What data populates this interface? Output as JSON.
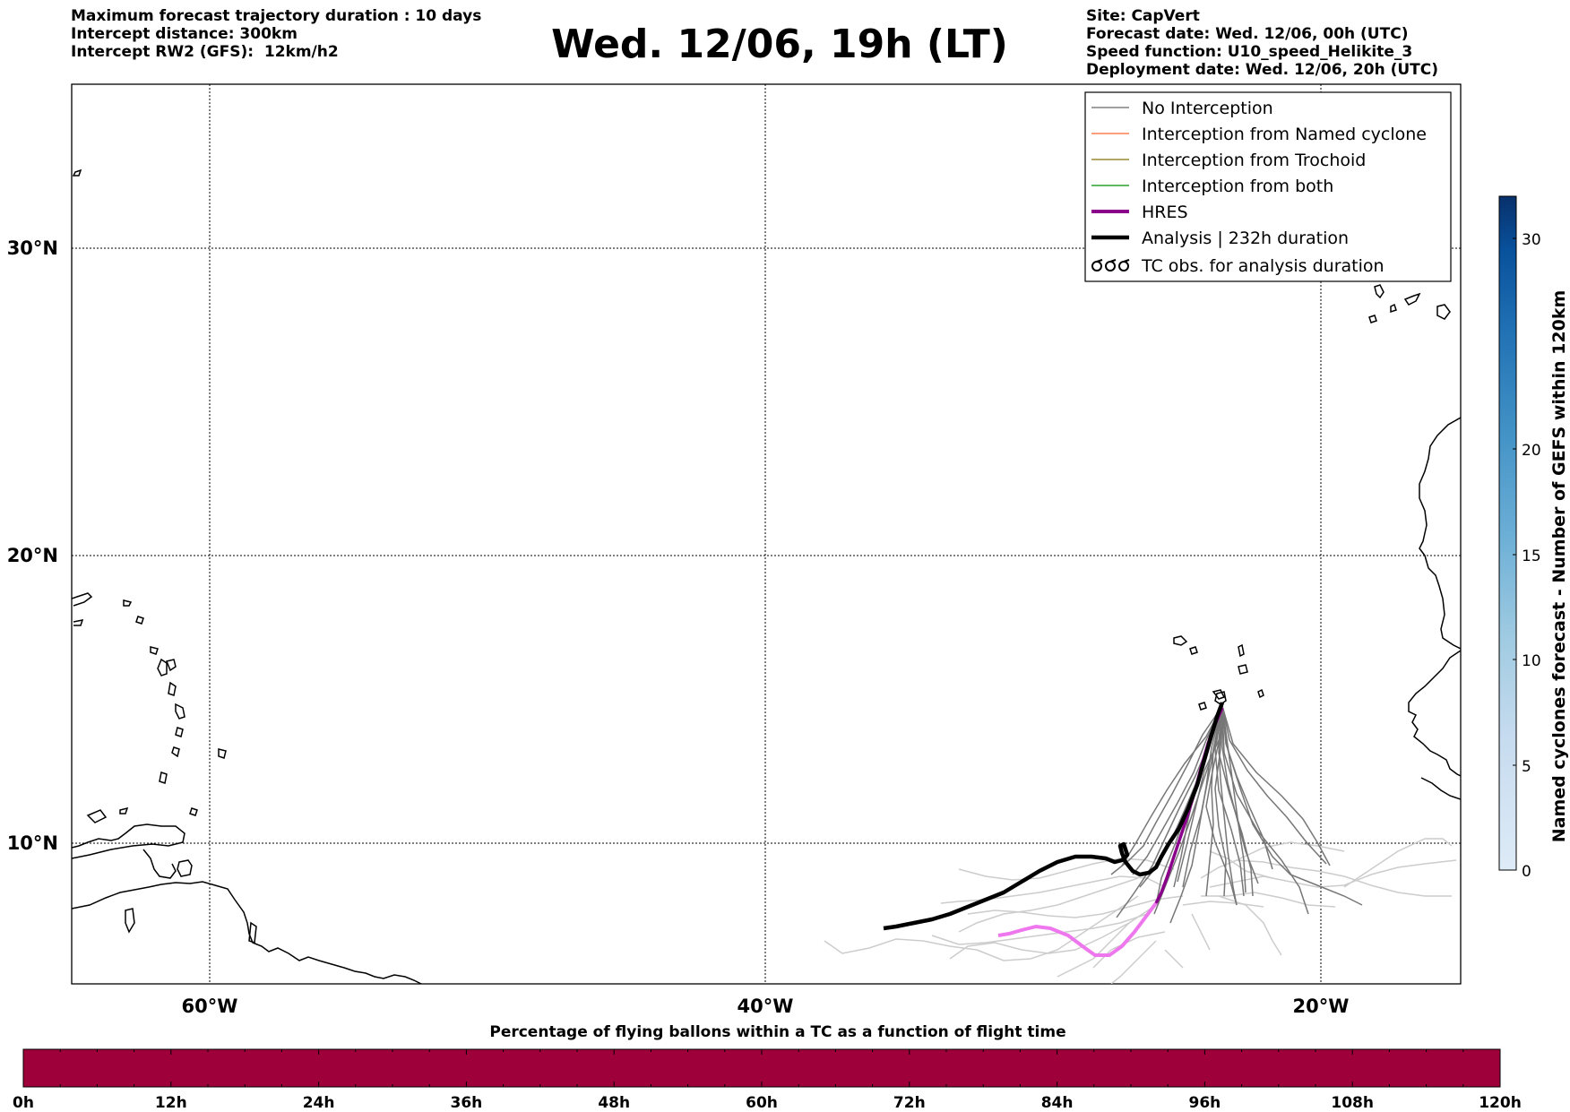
{
  "header": {
    "left_lines": [
      "Maximum forecast trajectory duration : 10 days",
      "Intercept distance: 300km",
      "Intercept RW2 (GFS):  12km/h2"
    ],
    "title": "Wed. 12/06, 19h (LT)",
    "right_lines": [
      "Site: CapVert",
      "Forecast date: Wed. 12/06, 00h (UTC)",
      "Speed function: U10_speed_Helikite_3",
      "Deployment date: Wed. 12/06, 20h (UTC)"
    ]
  },
  "map": {
    "lon_range": [
      -65,
      15
    ],
    "lat_range": [
      5.3,
      34.6
    ],
    "lon_ticks": [
      {
        "lon": -60,
        "label": "60°W"
      },
      {
        "lon": -40,
        "label": "40°W"
      },
      {
        "lon": -20,
        "label": "20°W"
      }
    ],
    "lat_ticks": [
      {
        "lat": 30,
        "label": "30°N"
      },
      {
        "lat": 20,
        "label": "20°N"
      },
      {
        "lat": 10,
        "label": "10°N"
      }
    ]
  },
  "legend": {
    "items": [
      {
        "label": "No Interception",
        "color": "#808080",
        "style": "thin"
      },
      {
        "label": "Interception from Named cyclone",
        "color": "#ff7f50",
        "style": "thin"
      },
      {
        "label": "Interception from Trochoid",
        "color": "#9a8a35",
        "style": "thin"
      },
      {
        "label": "Interception from both",
        "color": "#2ca02c",
        "style": "thin"
      },
      {
        "label": "HRES",
        "color": "#8b008b",
        "style": "thick"
      },
      {
        "label": "Analysis | 232h duration",
        "color": "#000000",
        "style": "thick"
      },
      {
        "label": "TC obs. for analysis duration",
        "color": "#000000",
        "style": "tc-symbol"
      }
    ]
  },
  "colorbar_right": {
    "label": "Named cyclones forecast - Number of GEFS within 120km",
    "min": 0,
    "max": 32,
    "ticks": [
      0,
      5,
      10,
      15,
      20,
      30
    ],
    "colors": [
      "#deebf7",
      "#c6dbef",
      "#9ecae1",
      "#6baed6",
      "#4292c6",
      "#2171b5",
      "#08519c",
      "#08306b"
    ]
  },
  "colorbar_bottom": {
    "title": "Percentage of flying ballons within a TC as a function of flight time",
    "color": "#9e003a",
    "ticks": [
      "0h",
      "12h",
      "24h",
      "36h",
      "48h",
      "60h",
      "72h",
      "84h",
      "96h",
      "108h",
      "120h"
    ],
    "minor_per_major": 4
  }
}
